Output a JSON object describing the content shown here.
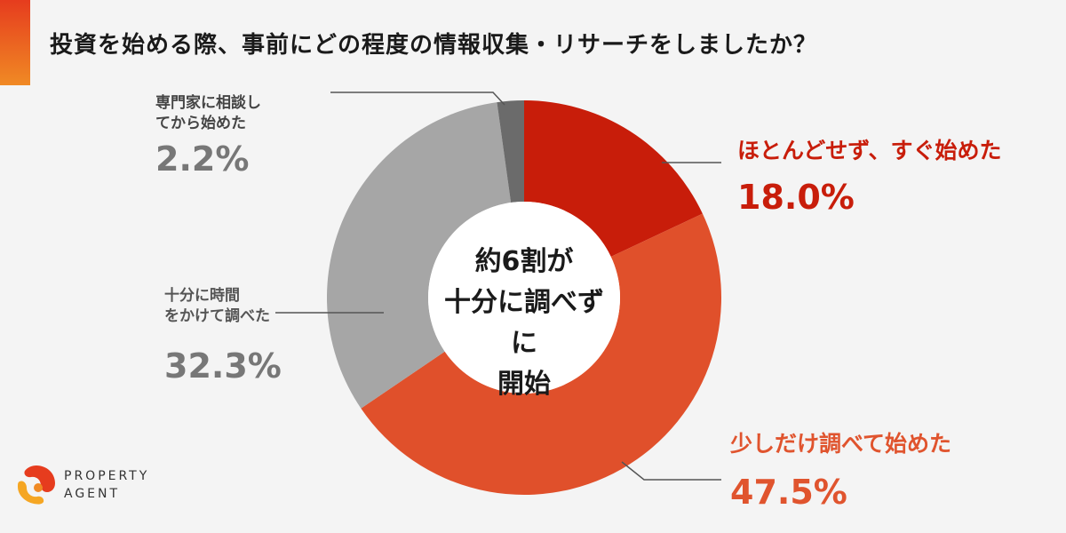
{
  "title": "投資を始める際、事前にどの程度の情報収集・リサーチをしましたか？",
  "center_text": [
    "約6割が",
    "十分に調べずに",
    "開始"
  ],
  "logo": {
    "line1": "PROPERTY",
    "line2": "AGENT"
  },
  "colors": {
    "accent_start": "#e63c1e",
    "accent_end": "#f08a24",
    "slice_1": "#c81d0a",
    "slice_2": "#e0502b",
    "slice_3": "#a6a6a6",
    "slice_4": "#6b6b6b"
  },
  "chart_data": {
    "type": "pie",
    "title": "投資を始める際、事前にどの程度の情報収集・リサーチをしましたか？",
    "donut": true,
    "slices": [
      {
        "label": "ほとんどせず、すぐ始めた",
        "value": 18.0,
        "value_label": "18.0%",
        "color": "#c81d0a"
      },
      {
        "label": "少しだけ調べて始めた",
        "value": 47.5,
        "value_label": "47.5%",
        "color": "#e0502b"
      },
      {
        "label": "十分に時間をかけて調べた",
        "value": 32.3,
        "value_label": "32.3%",
        "color": "#a6a6a6"
      },
      {
        "label": "専門家に相談してから始めた",
        "value": 2.2,
        "value_label": "2.2%",
        "color": "#6b6b6b"
      }
    ]
  }
}
